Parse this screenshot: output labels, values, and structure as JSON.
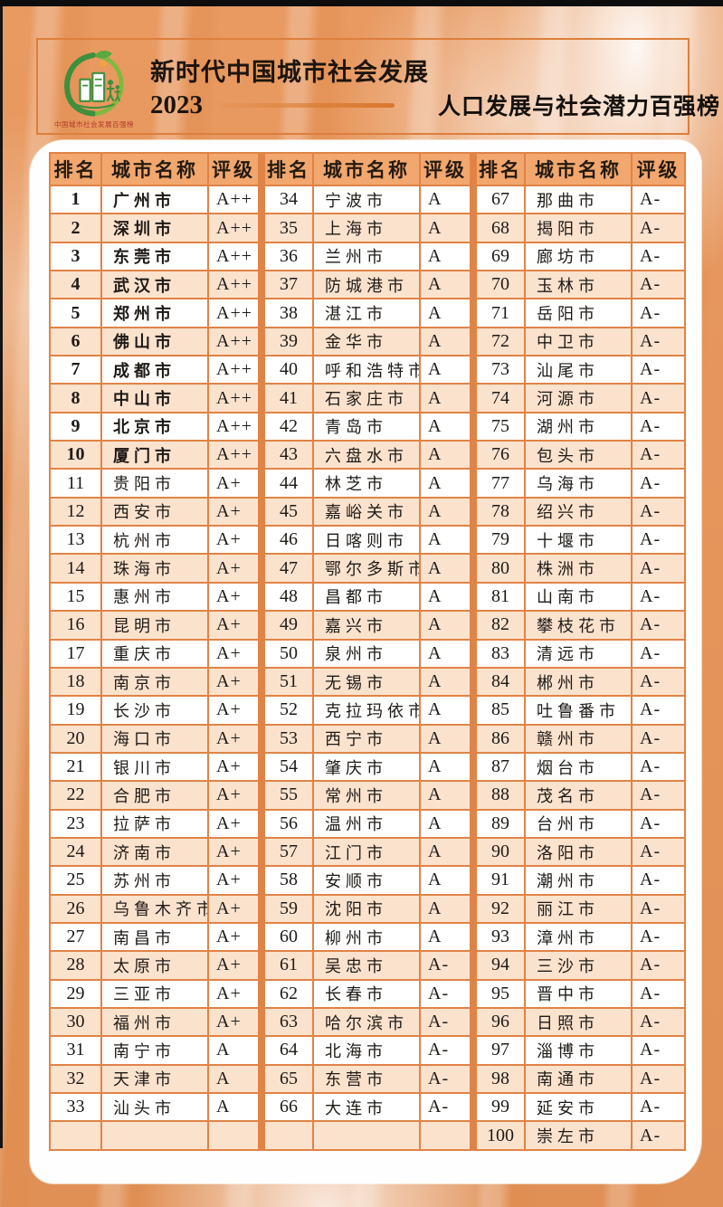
{
  "header": {
    "title": "新时代中国城市社会发展",
    "year": "2023",
    "subtitle": "人口发展与社会潜力百强榜",
    "logo_caption": "中国城市社会发展百强榜"
  },
  "colors": {
    "accent_orange": "#dd7f3c",
    "table_border": "#e08346",
    "table_header_bg": "#f2a76e",
    "row_stripe": "#fbe2cd",
    "logo_green": "#3f8f3d",
    "logo_caption_red": "#b33a2b"
  },
  "table": {
    "column_headers": [
      "排名",
      "城市名称",
      "评级"
    ],
    "entries": [
      {
        "rank": 1,
        "city": "广州市",
        "rating": "A++"
      },
      {
        "rank": 2,
        "city": "深圳市",
        "rating": "A++"
      },
      {
        "rank": 3,
        "city": "东莞市",
        "rating": "A++"
      },
      {
        "rank": 4,
        "city": "武汉市",
        "rating": "A++"
      },
      {
        "rank": 5,
        "city": "郑州市",
        "rating": "A++"
      },
      {
        "rank": 6,
        "city": "佛山市",
        "rating": "A++"
      },
      {
        "rank": 7,
        "city": "成都市",
        "rating": "A++"
      },
      {
        "rank": 8,
        "city": "中山市",
        "rating": "A++"
      },
      {
        "rank": 9,
        "city": "北京市",
        "rating": "A++"
      },
      {
        "rank": 10,
        "city": "厦门市",
        "rating": "A++"
      },
      {
        "rank": 11,
        "city": "贵阳市",
        "rating": "A+"
      },
      {
        "rank": 12,
        "city": "西安市",
        "rating": "A+"
      },
      {
        "rank": 13,
        "city": "杭州市",
        "rating": "A+"
      },
      {
        "rank": 14,
        "city": "珠海市",
        "rating": "A+"
      },
      {
        "rank": 15,
        "city": "惠州市",
        "rating": "A+"
      },
      {
        "rank": 16,
        "city": "昆明市",
        "rating": "A+"
      },
      {
        "rank": 17,
        "city": "重庆市",
        "rating": "A+"
      },
      {
        "rank": 18,
        "city": "南京市",
        "rating": "A+"
      },
      {
        "rank": 19,
        "city": "长沙市",
        "rating": "A+"
      },
      {
        "rank": 20,
        "city": "海口市",
        "rating": "A+"
      },
      {
        "rank": 21,
        "city": "银川市",
        "rating": "A+"
      },
      {
        "rank": 22,
        "city": "合肥市",
        "rating": "A+"
      },
      {
        "rank": 23,
        "city": "拉萨市",
        "rating": "A+"
      },
      {
        "rank": 24,
        "city": "济南市",
        "rating": "A+"
      },
      {
        "rank": 25,
        "city": "苏州市",
        "rating": "A+"
      },
      {
        "rank": 26,
        "city": "乌鲁木齐市",
        "rating": "A+"
      },
      {
        "rank": 27,
        "city": "南昌市",
        "rating": "A+"
      },
      {
        "rank": 28,
        "city": "太原市",
        "rating": "A+"
      },
      {
        "rank": 29,
        "city": "三亚市",
        "rating": "A+"
      },
      {
        "rank": 30,
        "city": "福州市",
        "rating": "A+"
      },
      {
        "rank": 31,
        "city": "南宁市",
        "rating": "A"
      },
      {
        "rank": 32,
        "city": "天津市",
        "rating": "A"
      },
      {
        "rank": 33,
        "city": "汕头市",
        "rating": "A"
      },
      {
        "rank": 34,
        "city": "宁波市",
        "rating": "A"
      },
      {
        "rank": 35,
        "city": "上海市",
        "rating": "A"
      },
      {
        "rank": 36,
        "city": "兰州市",
        "rating": "A"
      },
      {
        "rank": 37,
        "city": "防城港市",
        "rating": "A"
      },
      {
        "rank": 38,
        "city": "湛江市",
        "rating": "A"
      },
      {
        "rank": 39,
        "city": "金华市",
        "rating": "A"
      },
      {
        "rank": 40,
        "city": "呼和浩特市",
        "rating": "A"
      },
      {
        "rank": 41,
        "city": "石家庄市",
        "rating": "A"
      },
      {
        "rank": 42,
        "city": "青岛市",
        "rating": "A"
      },
      {
        "rank": 43,
        "city": "六盘水市",
        "rating": "A"
      },
      {
        "rank": 44,
        "city": "林芝市",
        "rating": "A"
      },
      {
        "rank": 45,
        "city": "嘉峪关市",
        "rating": "A"
      },
      {
        "rank": 46,
        "city": "日喀则市",
        "rating": "A"
      },
      {
        "rank": 47,
        "city": "鄂尔多斯市",
        "rating": "A"
      },
      {
        "rank": 48,
        "city": "昌都市",
        "rating": "A"
      },
      {
        "rank": 49,
        "city": "嘉兴市",
        "rating": "A"
      },
      {
        "rank": 50,
        "city": "泉州市",
        "rating": "A"
      },
      {
        "rank": 51,
        "city": "无锡市",
        "rating": "A"
      },
      {
        "rank": 52,
        "city": "克拉玛依市",
        "rating": "A"
      },
      {
        "rank": 53,
        "city": "西宁市",
        "rating": "A"
      },
      {
        "rank": 54,
        "city": "肇庆市",
        "rating": "A"
      },
      {
        "rank": 55,
        "city": "常州市",
        "rating": "A"
      },
      {
        "rank": 56,
        "city": "温州市",
        "rating": "A"
      },
      {
        "rank": 57,
        "city": "江门市",
        "rating": "A"
      },
      {
        "rank": 58,
        "city": "安顺市",
        "rating": "A"
      },
      {
        "rank": 59,
        "city": "沈阳市",
        "rating": "A"
      },
      {
        "rank": 60,
        "city": "柳州市",
        "rating": "A"
      },
      {
        "rank": 61,
        "city": "吴忠市",
        "rating": "A-"
      },
      {
        "rank": 62,
        "city": "长春市",
        "rating": "A-"
      },
      {
        "rank": 63,
        "city": "哈尔滨市",
        "rating": "A-"
      },
      {
        "rank": 64,
        "city": "北海市",
        "rating": "A-"
      },
      {
        "rank": 65,
        "city": "东营市",
        "rating": "A-"
      },
      {
        "rank": 66,
        "city": "大连市",
        "rating": "A-"
      },
      {
        "rank": 67,
        "city": "那曲市",
        "rating": "A-"
      },
      {
        "rank": 68,
        "city": "揭阳市",
        "rating": "A-"
      },
      {
        "rank": 69,
        "city": "廊坊市",
        "rating": "A-"
      },
      {
        "rank": 70,
        "city": "玉林市",
        "rating": "A-"
      },
      {
        "rank": 71,
        "city": "岳阳市",
        "rating": "A-"
      },
      {
        "rank": 72,
        "city": "中卫市",
        "rating": "A-"
      },
      {
        "rank": 73,
        "city": "汕尾市",
        "rating": "A-"
      },
      {
        "rank": 74,
        "city": "河源市",
        "rating": "A-"
      },
      {
        "rank": 75,
        "city": "湖州市",
        "rating": "A-"
      },
      {
        "rank": 76,
        "city": "包头市",
        "rating": "A-"
      },
      {
        "rank": 77,
        "city": "乌海市",
        "rating": "A-"
      },
      {
        "rank": 78,
        "city": "绍兴市",
        "rating": "A-"
      },
      {
        "rank": 79,
        "city": "十堰市",
        "rating": "A-"
      },
      {
        "rank": 80,
        "city": "株洲市",
        "rating": "A-"
      },
      {
        "rank": 81,
        "city": "山南市",
        "rating": "A-"
      },
      {
        "rank": 82,
        "city": "攀枝花市",
        "rating": "A-"
      },
      {
        "rank": 83,
        "city": "清远市",
        "rating": "A-"
      },
      {
        "rank": 84,
        "city": "郴州市",
        "rating": "A-"
      },
      {
        "rank": 85,
        "city": "吐鲁番市",
        "rating": "A-"
      },
      {
        "rank": 86,
        "city": "赣州市",
        "rating": "A-"
      },
      {
        "rank": 87,
        "city": "烟台市",
        "rating": "A-"
      },
      {
        "rank": 88,
        "city": "茂名市",
        "rating": "A-"
      },
      {
        "rank": 89,
        "city": "台州市",
        "rating": "A-"
      },
      {
        "rank": 90,
        "city": "洛阳市",
        "rating": "A-"
      },
      {
        "rank": 91,
        "city": "潮州市",
        "rating": "A-"
      },
      {
        "rank": 92,
        "city": "丽江市",
        "rating": "A-"
      },
      {
        "rank": 93,
        "city": "漳州市",
        "rating": "A-"
      },
      {
        "rank": 94,
        "city": "三沙市",
        "rating": "A-"
      },
      {
        "rank": 95,
        "city": "晋中市",
        "rating": "A-"
      },
      {
        "rank": 96,
        "city": "日照市",
        "rating": "A-"
      },
      {
        "rank": 97,
        "city": "淄博市",
        "rating": "A-"
      },
      {
        "rank": 98,
        "city": "南通市",
        "rating": "A-"
      },
      {
        "rank": 99,
        "city": "延安市",
        "rating": "A-"
      },
      {
        "rank": 100,
        "city": "崇左市",
        "rating": "A-"
      }
    ]
  }
}
